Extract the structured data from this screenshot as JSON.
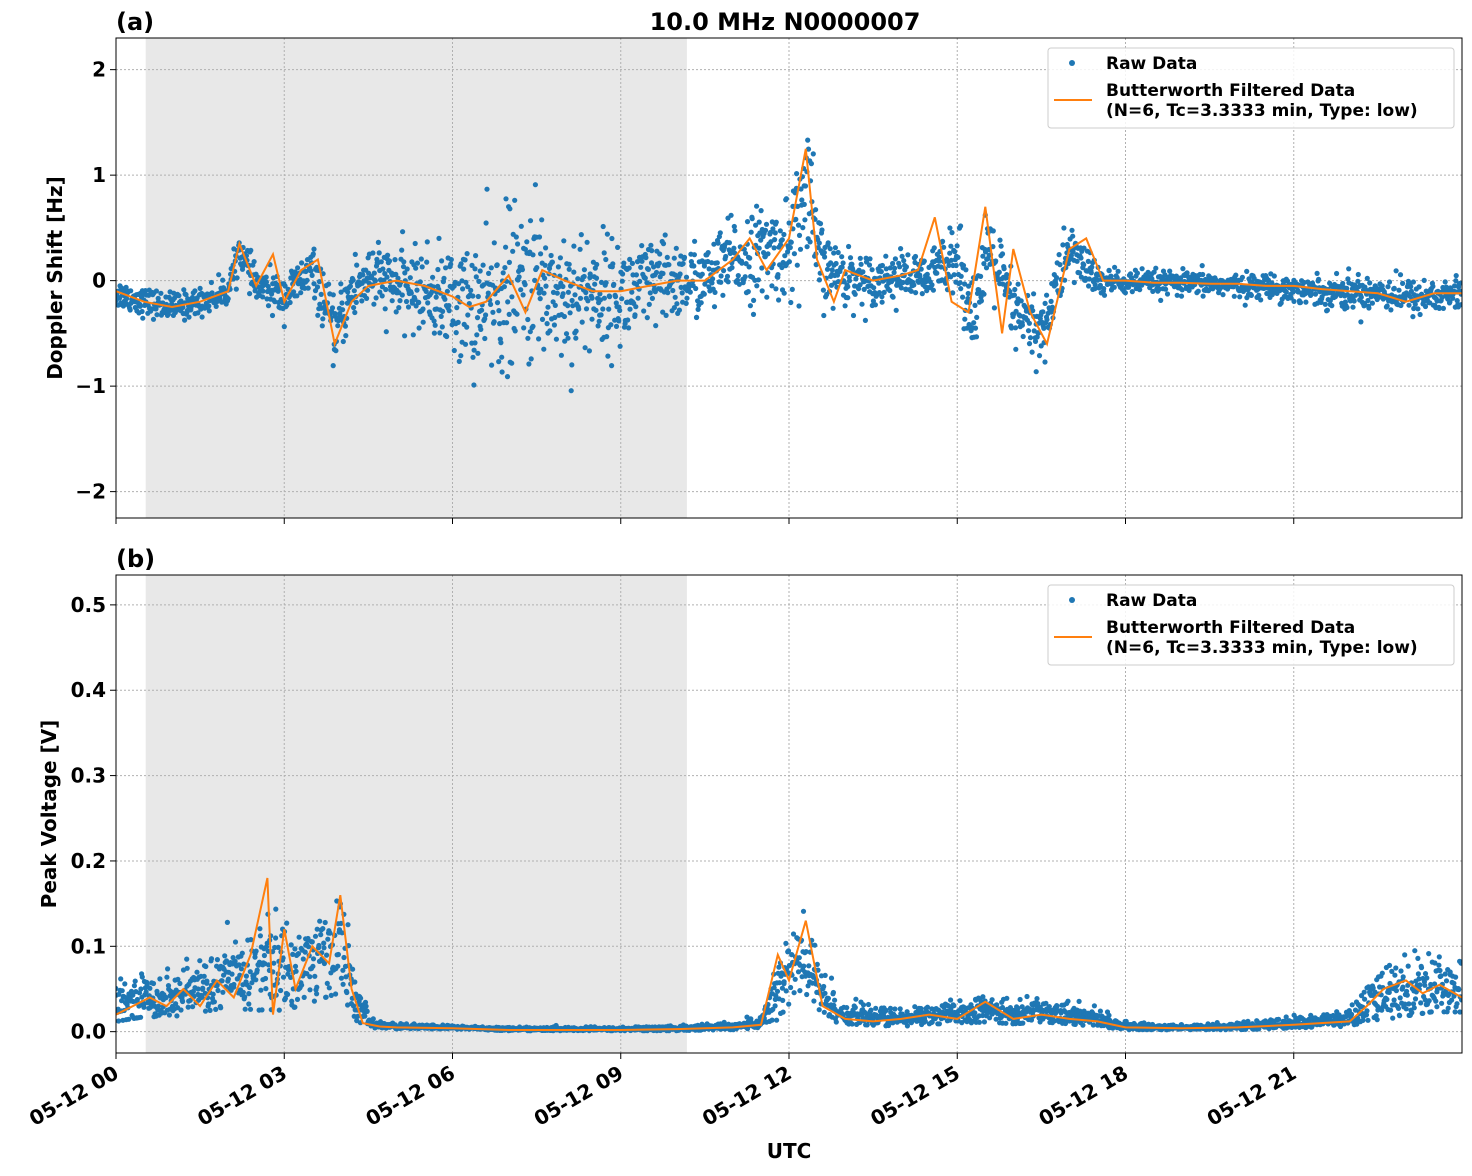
{
  "figure": {
    "title": "10.0 MHz N0000007",
    "x_axis_label": "UTC"
  },
  "chart_data": [
    {
      "panel_label": "(a)",
      "type": "scatter",
      "ylabel": "Doppler Shift [Hz]",
      "xlim_hours": [
        0,
        24
      ],
      "ylim": [
        -2.25,
        2.3
      ],
      "yticks": [
        -2,
        -1,
        0,
        1,
        2
      ],
      "ytick_labels": [
        "−2",
        "−1",
        "0",
        "1",
        "2"
      ],
      "xticks_hours": [
        0,
        3,
        6,
        9,
        12,
        15,
        18,
        21
      ],
      "xtick_labels": [
        "05-12 00",
        "05-12 03",
        "05-12 06",
        "05-12 09",
        "05-12 12",
        "05-12 15",
        "05-12 18",
        "05-12 21"
      ],
      "grid": true,
      "shaded_region_hours": [
        0.53,
        10.18
      ],
      "legend_position": "top-right",
      "legend": [
        {
          "label": "Raw Data",
          "style": "marker",
          "color": "#1f77b4"
        },
        {
          "label": "Butterworth Filtered Data",
          "label_line2": "(N=6, Tc=3.3333 min, Type: low)",
          "style": "line",
          "color": "#ff7f0e"
        }
      ],
      "series": [
        {
          "name": "Raw Data",
          "color": "#1f77b4",
          "x_hours": [
            0,
            0.5,
            1,
            1.5,
            2,
            2.2,
            2.5,
            3,
            3.5,
            3.9,
            4.2,
            4.5,
            5,
            5.5,
            6,
            6.5,
            7,
            7.5,
            8,
            8.5,
            9,
            9.5,
            10,
            10.5,
            11,
            11.5,
            12,
            12.3,
            12.6,
            13,
            13.5,
            14,
            14.5,
            14.9,
            15.3,
            15.6,
            16,
            16.5,
            17,
            17.5,
            18,
            18.5,
            19,
            19.5,
            20,
            20.5,
            21,
            21.5,
            22,
            22.5,
            23,
            23.5,
            24
          ],
          "center": [
            -0.12,
            -0.2,
            -0.25,
            -0.2,
            -0.1,
            0.3,
            -0.05,
            -0.15,
            0.1,
            -0.5,
            -0.1,
            0.05,
            -0.05,
            -0.1,
            -0.2,
            -0.25,
            -0.1,
            0.0,
            -0.15,
            -0.1,
            -0.15,
            -0.05,
            0.0,
            0.0,
            0.2,
            0.25,
            0.3,
            0.8,
            0.1,
            0.05,
            0.0,
            0.05,
            0.0,
            0.3,
            -0.3,
            0.3,
            -0.3,
            -0.5,
            0.3,
            0.0,
            -0.02,
            -0.02,
            -0.03,
            -0.03,
            -0.05,
            -0.05,
            -0.08,
            -0.1,
            -0.12,
            -0.1,
            -0.15,
            -0.15,
            -0.12
          ],
          "spread": [
            0.12,
            0.12,
            0.12,
            0.12,
            0.12,
            0.15,
            0.15,
            0.18,
            0.2,
            0.25,
            0.3,
            0.3,
            0.3,
            0.35,
            0.45,
            0.6,
            0.7,
            0.65,
            0.6,
            0.5,
            0.45,
            0.4,
            0.35,
            0.3,
            0.35,
            0.4,
            0.4,
            0.8,
            0.3,
            0.25,
            0.2,
            0.2,
            0.2,
            0.3,
            0.35,
            0.35,
            0.3,
            0.3,
            0.25,
            0.15,
            0.1,
            0.1,
            0.1,
            0.1,
            0.1,
            0.1,
            0.12,
            0.12,
            0.15,
            0.15,
            0.15,
            0.15,
            0.15
          ]
        },
        {
          "name": "Butterworth Filtered Data",
          "color": "#ff7f0e",
          "x_hours": [
            0,
            0.5,
            1,
            1.5,
            2,
            2.2,
            2.5,
            2.8,
            3,
            3.3,
            3.6,
            3.9,
            4.2,
            4.5,
            5,
            5.5,
            6,
            6.3,
            6.6,
            7,
            7.3,
            7.6,
            8,
            8.5,
            9,
            9.5,
            10,
            10.5,
            11,
            11.3,
            11.6,
            12,
            12.3,
            12.5,
            12.8,
            13,
            13.5,
            14,
            14.3,
            14.6,
            14.9,
            15.2,
            15.5,
            15.8,
            16,
            16.3,
            16.6,
            17,
            17.3,
            17.6,
            18,
            18.5,
            19,
            19.5,
            20,
            20.5,
            21,
            21.5,
            22,
            22.5,
            23,
            23.5,
            24
          ],
          "values": [
            -0.1,
            -0.2,
            -0.25,
            -0.2,
            -0.1,
            0.35,
            -0.05,
            0.25,
            -0.2,
            0.1,
            0.2,
            -0.6,
            -0.2,
            -0.05,
            0.0,
            -0.05,
            -0.15,
            -0.25,
            -0.2,
            0.05,
            -0.3,
            0.1,
            0.0,
            -0.1,
            -0.1,
            -0.05,
            0.0,
            0.0,
            0.2,
            0.4,
            0.1,
            0.4,
            1.25,
            0.2,
            -0.2,
            0.1,
            0.0,
            0.05,
            0.1,
            0.6,
            -0.2,
            -0.3,
            0.7,
            -0.5,
            0.3,
            -0.3,
            -0.6,
            0.3,
            0.4,
            0.0,
            0.0,
            -0.02,
            -0.02,
            -0.03,
            -0.03,
            -0.05,
            -0.05,
            -0.08,
            -0.1,
            -0.12,
            -0.2,
            -0.12,
            -0.12
          ]
        }
      ]
    },
    {
      "panel_label": "(b)",
      "type": "scatter",
      "ylabel": "Peak Voltage [V]",
      "xlim_hours": [
        0,
        24
      ],
      "ylim": [
        -0.025,
        0.535
      ],
      "yticks": [
        0.0,
        0.1,
        0.2,
        0.3,
        0.4,
        0.5
      ],
      "ytick_labels": [
        "0.0",
        "0.1",
        "0.2",
        "0.3",
        "0.4",
        "0.5"
      ],
      "xticks_hours": [
        0,
        3,
        6,
        9,
        12,
        15,
        18,
        21
      ],
      "xtick_labels": [
        "05-12 00",
        "05-12 03",
        "05-12 06",
        "05-12 09",
        "05-12 12",
        "05-12 15",
        "05-12 18",
        "05-12 21"
      ],
      "grid": true,
      "shaded_region_hours": [
        0.53,
        10.18
      ],
      "legend_position": "top-right",
      "legend": [
        {
          "label": "Raw Data",
          "style": "marker",
          "color": "#1f77b4"
        },
        {
          "label": "Butterworth Filtered Data",
          "label_line2": "(N=6, Tc=3.3333 min, Type: low)",
          "style": "line",
          "color": "#ff7f0e"
        }
      ],
      "series": [
        {
          "name": "Raw Data",
          "color": "#1f77b4",
          "x_hours": [
            0,
            0.5,
            1,
            1.5,
            2,
            2.5,
            2.7,
            3,
            3.5,
            4,
            4.3,
            4.6,
            5,
            6,
            7,
            8,
            9,
            10,
            11,
            11.5,
            11.8,
            12,
            12.3,
            12.6,
            13,
            14,
            14.5,
            15,
            15.5,
            16,
            16.5,
            17,
            17.5,
            18,
            19,
            20,
            21,
            22,
            22.5,
            23,
            23.5,
            24
          ],
          "center": [
            0.03,
            0.04,
            0.04,
            0.05,
            0.06,
            0.07,
            0.08,
            0.07,
            0.08,
            0.1,
            0.03,
            0.008,
            0.006,
            0.005,
            0.003,
            0.003,
            0.003,
            0.004,
            0.006,
            0.01,
            0.05,
            0.07,
            0.08,
            0.04,
            0.02,
            0.015,
            0.02,
            0.02,
            0.025,
            0.02,
            0.025,
            0.02,
            0.015,
            0.006,
            0.005,
            0.006,
            0.01,
            0.015,
            0.04,
            0.05,
            0.055,
            0.05
          ],
          "spread": [
            0.02,
            0.025,
            0.025,
            0.03,
            0.035,
            0.05,
            0.06,
            0.05,
            0.05,
            0.06,
            0.02,
            0.004,
            0.003,
            0.002,
            0.002,
            0.002,
            0.002,
            0.003,
            0.004,
            0.006,
            0.04,
            0.05,
            0.05,
            0.03,
            0.012,
            0.01,
            0.012,
            0.012,
            0.015,
            0.012,
            0.015,
            0.012,
            0.01,
            0.004,
            0.003,
            0.004,
            0.006,
            0.01,
            0.03,
            0.035,
            0.035,
            0.03
          ]
        },
        {
          "name": "Butterworth Filtered Data",
          "color": "#ff7f0e",
          "x_hours": [
            0,
            0.3,
            0.6,
            0.9,
            1.2,
            1.5,
            1.8,
            2.1,
            2.4,
            2.7,
            2.8,
            3.0,
            3.2,
            3.5,
            3.8,
            4.0,
            4.2,
            4.4,
            4.7,
            5,
            6,
            7,
            8,
            9,
            10,
            11,
            11.5,
            11.8,
            12,
            12.3,
            12.6,
            13,
            13.5,
            14,
            14.5,
            15,
            15.5,
            16,
            16.5,
            17,
            17.5,
            18,
            19,
            20,
            21,
            22,
            22.3,
            22.6,
            23,
            23.3,
            23.6,
            24
          ],
          "values": [
            0.02,
            0.03,
            0.04,
            0.03,
            0.05,
            0.03,
            0.06,
            0.04,
            0.09,
            0.18,
            0.02,
            0.12,
            0.05,
            0.1,
            0.08,
            0.16,
            0.05,
            0.01,
            0.006,
            0.005,
            0.004,
            0.002,
            0.002,
            0.002,
            0.003,
            0.005,
            0.008,
            0.09,
            0.06,
            0.13,
            0.03,
            0.015,
            0.012,
            0.015,
            0.02,
            0.015,
            0.035,
            0.015,
            0.02,
            0.015,
            0.012,
            0.005,
            0.004,
            0.005,
            0.008,
            0.012,
            0.03,
            0.05,
            0.06,
            0.045,
            0.055,
            0.04
          ]
        }
      ]
    }
  ]
}
